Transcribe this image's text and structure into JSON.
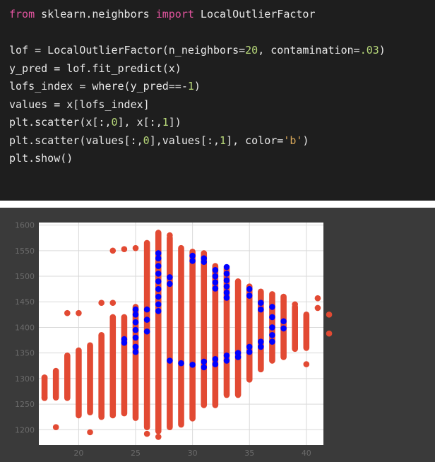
{
  "code": {
    "lines": [
      [
        {
          "t": "from",
          "c": "kw"
        },
        {
          "t": " sklearn.neighbors "
        },
        {
          "t": "import",
          "c": "kw"
        },
        {
          "t": " LocalOutlierFactor"
        }
      ],
      [],
      [
        {
          "t": "lof = LocalOutlierFactor(n_neighbors="
        },
        {
          "t": "20",
          "c": "num"
        },
        {
          "t": ", contamination="
        },
        {
          "t": ".03",
          "c": "num"
        },
        {
          "t": ")"
        }
      ],
      [
        {
          "t": "y_pred = lof.fit_predict(x)"
        }
      ],
      [
        {
          "t": "lofs_index = where(y_pred==-"
        },
        {
          "t": "1",
          "c": "num"
        },
        {
          "t": ")"
        }
      ],
      [
        {
          "t": "values = x[lofs_index]"
        }
      ],
      [
        {
          "t": "plt.scatter(x[:,"
        },
        {
          "t": "0",
          "c": "num"
        },
        {
          "t": "], x[:,"
        },
        {
          "t": "1",
          "c": "num"
        },
        {
          "t": "])"
        }
      ],
      [
        {
          "t": "plt.scatter(values[:,"
        },
        {
          "t": "0",
          "c": "num"
        },
        {
          "t": "],values[:,"
        },
        {
          "t": "1",
          "c": "num"
        },
        {
          "t": "], color="
        },
        {
          "t": "'b'",
          "c": "str"
        },
        {
          "t": ")"
        }
      ],
      [
        {
          "t": "plt.show()"
        }
      ]
    ]
  },
  "chart_data": {
    "type": "scatter",
    "xlim": [
      16.5,
      41.5
    ],
    "ylim": [
      1170,
      1605
    ],
    "xticks": [
      20,
      25,
      30,
      35,
      40
    ],
    "yticks": [
      1200,
      1250,
      1300,
      1350,
      1400,
      1450,
      1500,
      1550,
      1600
    ],
    "grid": true,
    "colors": {
      "inliers": "#e24a33",
      "outliers": "#0000ff"
    },
    "inlier_columns": [
      {
        "x": 17,
        "ymin": 1262,
        "ymax": 1302
      },
      {
        "x": 18,
        "ymin": 1263,
        "ymax": 1315
      },
      {
        "x": 19,
        "ymin": 1262,
        "ymax": 1345
      },
      {
        "x": 20,
        "ymin": 1228,
        "ymax": 1355
      },
      {
        "x": 21,
        "ymin": 1234,
        "ymax": 1365
      },
      {
        "x": 22,
        "ymin": 1225,
        "ymax": 1385
      },
      {
        "x": 23,
        "ymin": 1228,
        "ymax": 1420
      },
      {
        "x": 24,
        "ymin": 1232,
        "ymax": 1420
      },
      {
        "x": 25,
        "ymin": 1223,
        "ymax": 1440
      },
      {
        "x": 26,
        "ymin": 1205,
        "ymax": 1565
      },
      {
        "x": 27,
        "ymin": 1197,
        "ymax": 1585
      },
      {
        "x": 28,
        "ymin": 1205,
        "ymax": 1575
      },
      {
        "x": 29,
        "ymin": 1210,
        "ymax": 1555
      },
      {
        "x": 30,
        "ymin": 1222,
        "ymax": 1548
      },
      {
        "x": 31,
        "ymin": 1248,
        "ymax": 1545
      },
      {
        "x": 32,
        "ymin": 1248,
        "ymax": 1520
      },
      {
        "x": 33,
        "ymin": 1268,
        "ymax": 1515
      },
      {
        "x": 34,
        "ymin": 1268,
        "ymax": 1490
      },
      {
        "x": 35,
        "ymin": 1298,
        "ymax": 1480
      },
      {
        "x": 36,
        "ymin": 1318,
        "ymax": 1470
      },
      {
        "x": 37,
        "ymin": 1335,
        "ymax": 1465
      },
      {
        "x": 38,
        "ymin": 1342,
        "ymax": 1460
      },
      {
        "x": 39,
        "ymin": 1358,
        "ymax": 1440
      },
      {
        "x": 40,
        "ymin": 1360,
        "ymax": 1425
      }
    ],
    "inlier_points": [
      {
        "x": 17,
        "y": 1302
      },
      {
        "x": 17,
        "y": 1262
      },
      {
        "x": 18,
        "y": 1205
      },
      {
        "x": 19,
        "y": 1428
      },
      {
        "x": 20,
        "y": 1428
      },
      {
        "x": 21,
        "y": 1195
      },
      {
        "x": 22,
        "y": 1448
      },
      {
        "x": 23,
        "y": 1448
      },
      {
        "x": 23,
        "y": 1550
      },
      {
        "x": 24,
        "y": 1553
      },
      {
        "x": 25,
        "y": 1555
      },
      {
        "x": 26,
        "y": 1192
      },
      {
        "x": 27,
        "y": 1186
      },
      {
        "x": 28,
        "y": 1580
      },
      {
        "x": 39,
        "y": 1445
      },
      {
        "x": 40,
        "y": 1328
      },
      {
        "x": 41,
        "y": 1457
      },
      {
        "x": 41,
        "y": 1438
      },
      {
        "x": 42,
        "y": 1425
      },
      {
        "x": 42,
        "y": 1388
      }
    ],
    "outlier_points": [
      {
        "x": 24,
        "y": 1377
      },
      {
        "x": 24,
        "y": 1370
      },
      {
        "x": 25,
        "y": 1435
      },
      {
        "x": 25,
        "y": 1425
      },
      {
        "x": 25,
        "y": 1410
      },
      {
        "x": 25,
        "y": 1395
      },
      {
        "x": 25,
        "y": 1380
      },
      {
        "x": 25,
        "y": 1362
      },
      {
        "x": 25,
        "y": 1352
      },
      {
        "x": 26,
        "y": 1435
      },
      {
        "x": 26,
        "y": 1415
      },
      {
        "x": 26,
        "y": 1392
      },
      {
        "x": 27,
        "y": 1545
      },
      {
        "x": 27,
        "y": 1535
      },
      {
        "x": 27,
        "y": 1520
      },
      {
        "x": 27,
        "y": 1505
      },
      {
        "x": 27,
        "y": 1490
      },
      {
        "x": 27,
        "y": 1475
      },
      {
        "x": 27,
        "y": 1460
      },
      {
        "x": 27,
        "y": 1445
      },
      {
        "x": 27,
        "y": 1432
      },
      {
        "x": 28,
        "y": 1498
      },
      {
        "x": 28,
        "y": 1485
      },
      {
        "x": 28,
        "y": 1335
      },
      {
        "x": 29,
        "y": 1330
      },
      {
        "x": 30,
        "y": 1327
      },
      {
        "x": 30,
        "y": 1540
      },
      {
        "x": 30,
        "y": 1530
      },
      {
        "x": 31,
        "y": 1535
      },
      {
        "x": 31,
        "y": 1528
      },
      {
        "x": 31,
        "y": 1333
      },
      {
        "x": 31,
        "y": 1322
      },
      {
        "x": 32,
        "y": 1338
      },
      {
        "x": 32,
        "y": 1328
      },
      {
        "x": 32,
        "y": 1512
      },
      {
        "x": 32,
        "y": 1500
      },
      {
        "x": 32,
        "y": 1488
      },
      {
        "x": 32,
        "y": 1476
      },
      {
        "x": 33,
        "y": 1345
      },
      {
        "x": 33,
        "y": 1335
      },
      {
        "x": 33,
        "y": 1518
      },
      {
        "x": 33,
        "y": 1505
      },
      {
        "x": 33,
        "y": 1492
      },
      {
        "x": 33,
        "y": 1480
      },
      {
        "x": 33,
        "y": 1468
      },
      {
        "x": 33,
        "y": 1458
      },
      {
        "x": 34,
        "y": 1350
      },
      {
        "x": 34,
        "y": 1342
      },
      {
        "x": 35,
        "y": 1362
      },
      {
        "x": 35,
        "y": 1352
      },
      {
        "x": 35,
        "y": 1475
      },
      {
        "x": 35,
        "y": 1462
      },
      {
        "x": 36,
        "y": 1372
      },
      {
        "x": 36,
        "y": 1362
      },
      {
        "x": 36,
        "y": 1448
      },
      {
        "x": 36,
        "y": 1435
      },
      {
        "x": 37,
        "y": 1440
      },
      {
        "x": 37,
        "y": 1420
      },
      {
        "x": 37,
        "y": 1400
      },
      {
        "x": 37,
        "y": 1385
      },
      {
        "x": 37,
        "y": 1372
      },
      {
        "x": 38,
        "y": 1412
      },
      {
        "x": 38,
        "y": 1398
      }
    ]
  }
}
